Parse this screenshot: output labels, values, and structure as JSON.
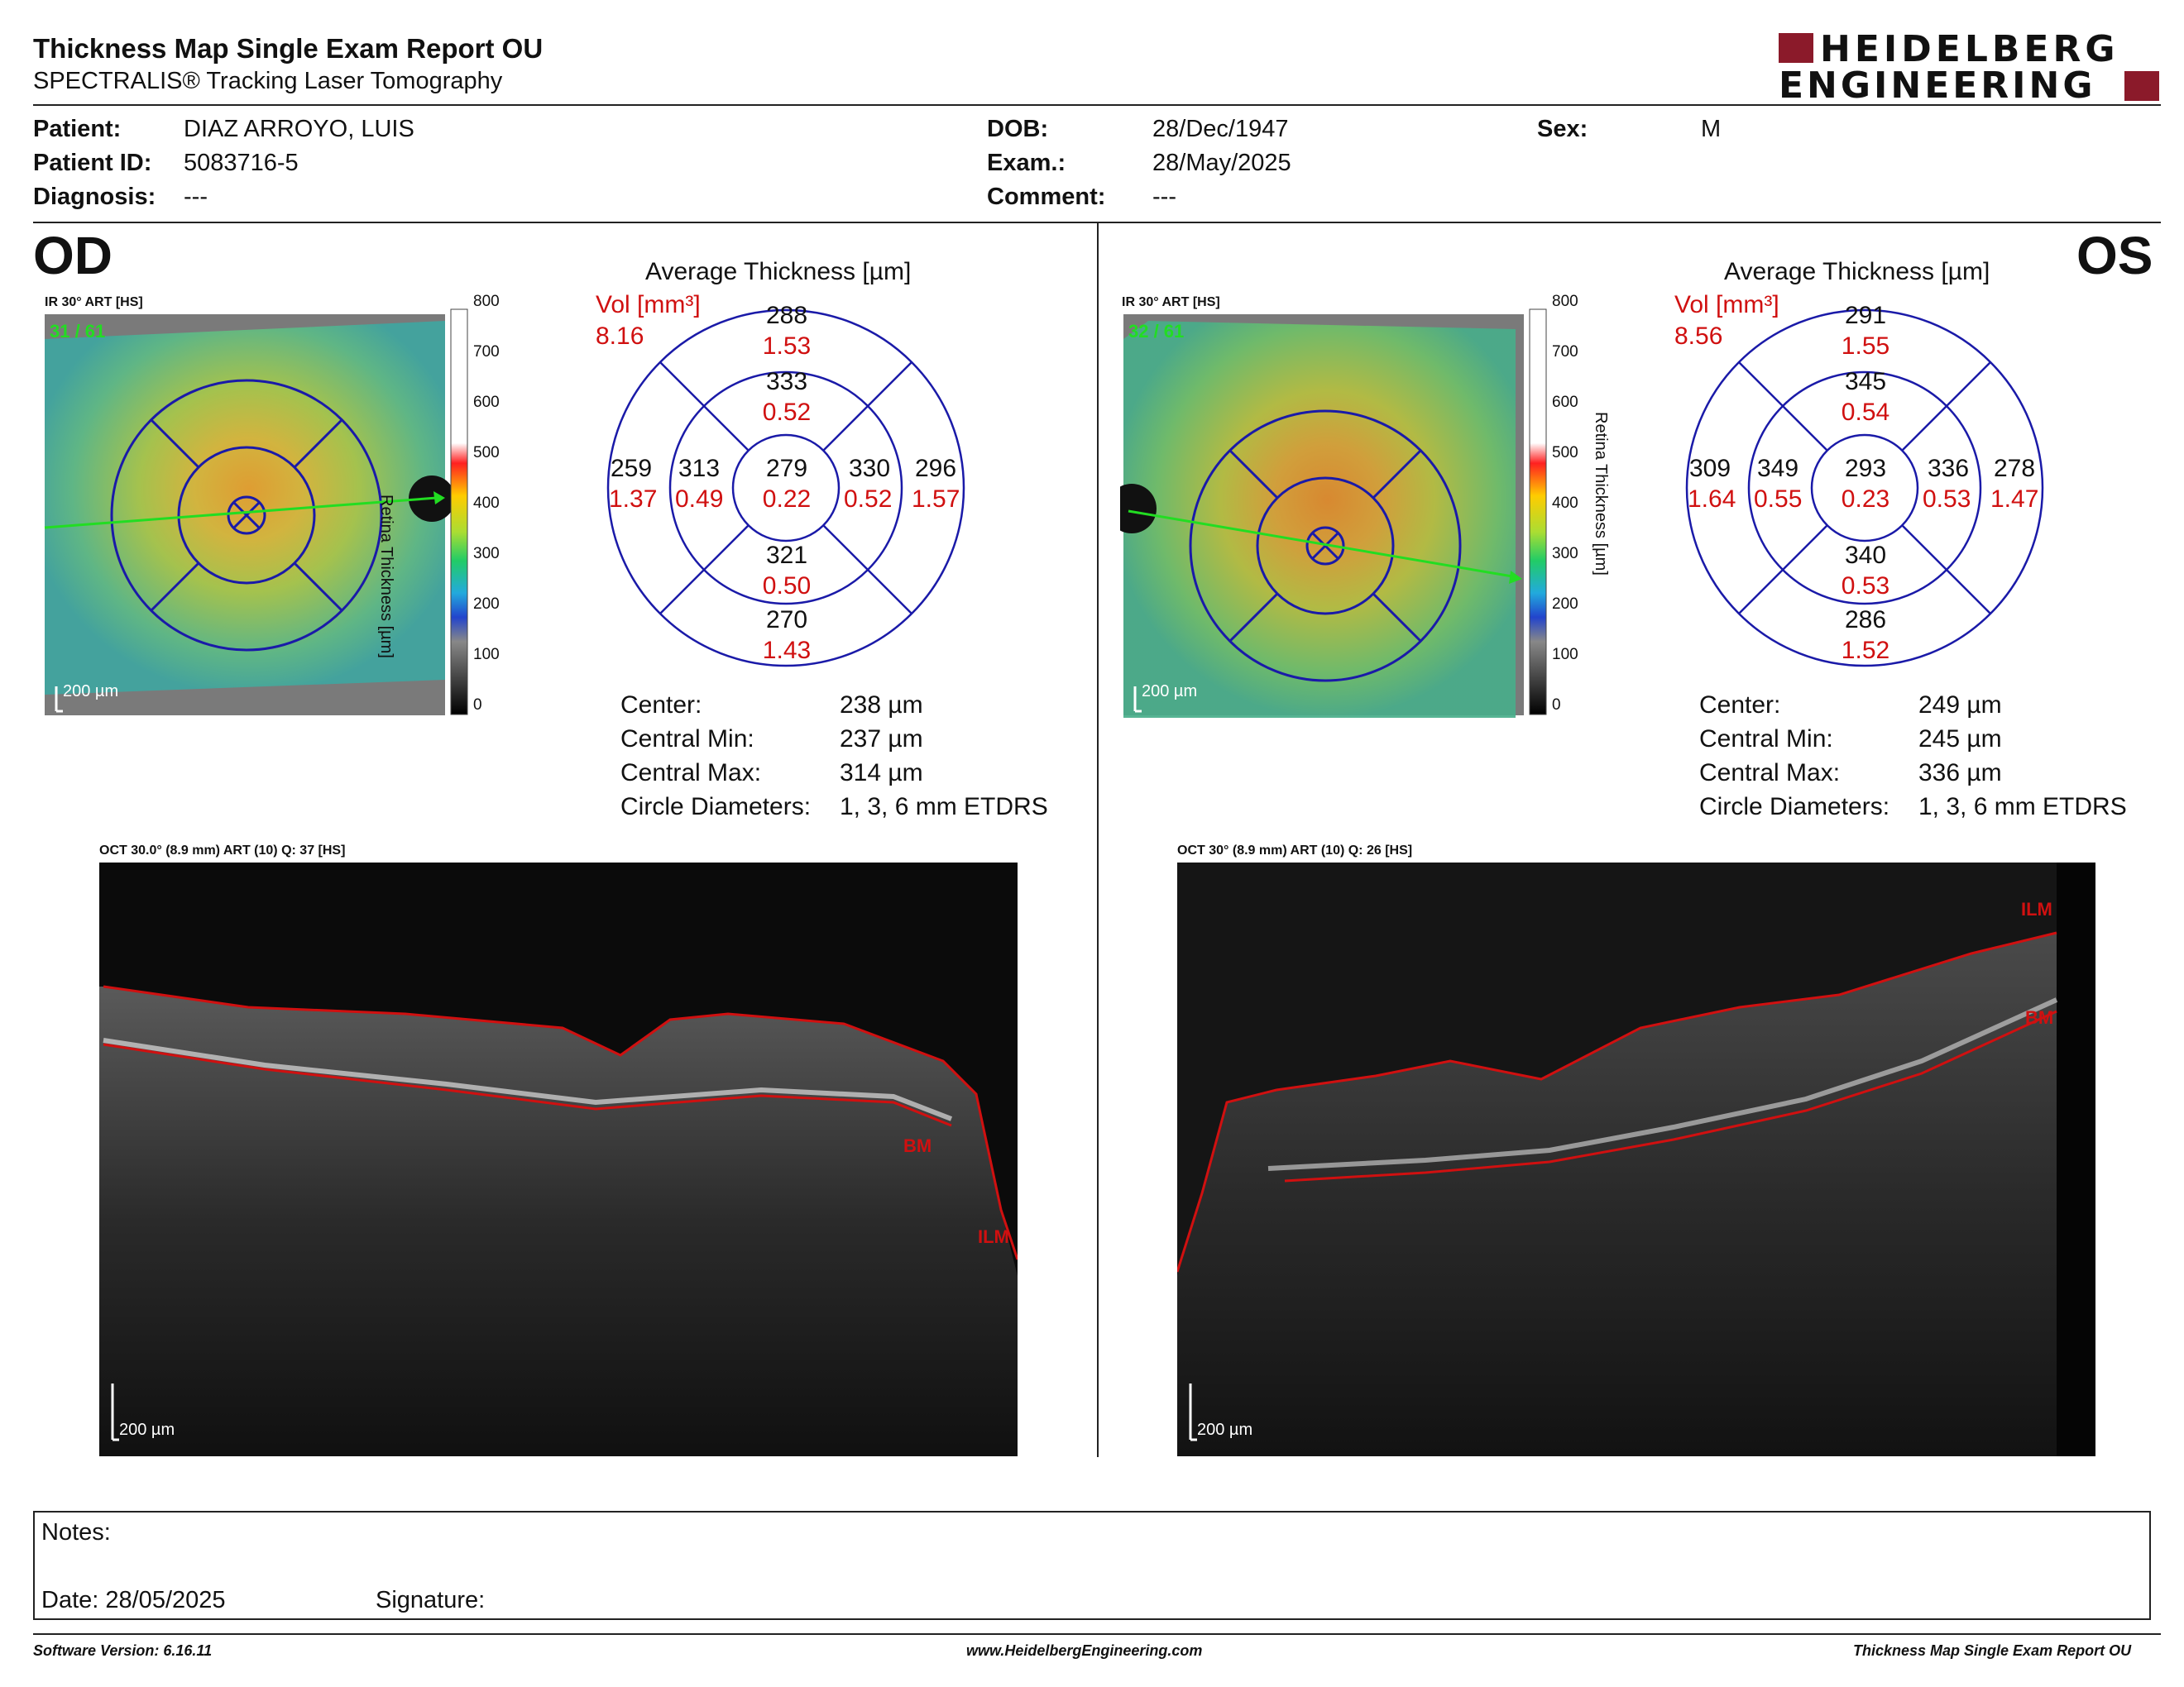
{
  "header": {
    "title": "Thickness Map Single Exam Report OU",
    "subtitle": "SPECTRALIS® Tracking Laser Tomography",
    "logo_line1": "HEIDELBERG",
    "logo_line2": "ENGINEERING"
  },
  "patient": {
    "patient_label": "Patient:",
    "patient_value": "DIAZ ARROYO, LUIS",
    "id_label": "Patient ID:",
    "id_value": "5083716-5",
    "diagnosis_label": "Diagnosis:",
    "diagnosis_value": "---",
    "dob_label": "DOB:",
    "dob_value": "28/Dec/1947",
    "exam_label": "Exam.:",
    "exam_value": "28/May/2025",
    "comment_label": "Comment:",
    "comment_value": "---",
    "sex_label": "Sex:",
    "sex_value": "M"
  },
  "colorbar": {
    "ticks": [
      "800",
      "700",
      "600",
      "500",
      "400",
      "300",
      "200",
      "100",
      "0"
    ],
    "label": "Retina Thickness [µm]"
  },
  "od": {
    "eye": "OD",
    "ir_label": "IR 30° ART [HS]",
    "frame": "31 / 61",
    "scale": "200 µm",
    "avg_title": "Average Thickness [µm]",
    "vol_label": "Vol [mm³]",
    "vol_total": "8.16",
    "sectors": {
      "outer_top": [
        "288",
        "1.53"
      ],
      "inner_top": [
        "333",
        "0.52"
      ],
      "outer_left": [
        "259",
        "1.37"
      ],
      "inner_left": [
        "313",
        "0.49"
      ],
      "center": [
        "279",
        "0.22"
      ],
      "inner_right": [
        "330",
        "0.52"
      ],
      "outer_right": [
        "296",
        "1.57"
      ],
      "inner_bottom": [
        "321",
        "0.50"
      ],
      "outer_bottom": [
        "270",
        "1.43"
      ]
    },
    "stats": {
      "center_label": "Center:",
      "center_value": "238 µm",
      "min_label": "Central Min:",
      "min_value": "237 µm",
      "max_label": "Central Max:",
      "max_value": "314 µm",
      "circ_label": "Circle Diameters:",
      "circ_value": "1, 3, 6 mm ETDRS"
    },
    "oct_label": "OCT 30.0° (8.9 mm) ART (10) Q: 37 [HS]",
    "oct_scale": "200 µm",
    "tag_bm": "BM",
    "tag_ilm": "ILM"
  },
  "os": {
    "eye": "OS",
    "ir_label": "IR 30° ART [HS]",
    "frame": "32 / 61",
    "scale": "200 µm",
    "avg_title": "Average Thickness [µm]",
    "vol_label": "Vol [mm³]",
    "vol_total": "8.56",
    "sectors": {
      "outer_top": [
        "291",
        "1.55"
      ],
      "inner_top": [
        "345",
        "0.54"
      ],
      "outer_left": [
        "309",
        "1.64"
      ],
      "inner_left": [
        "349",
        "0.55"
      ],
      "center": [
        "293",
        "0.23"
      ],
      "inner_right": [
        "336",
        "0.53"
      ],
      "outer_right": [
        "278",
        "1.47"
      ],
      "inner_bottom": [
        "340",
        "0.53"
      ],
      "outer_bottom": [
        "286",
        "1.52"
      ]
    },
    "stats": {
      "center_label": "Center:",
      "center_value": "249 µm",
      "min_label": "Central Min:",
      "min_value": "245 µm",
      "max_label": "Central Max:",
      "max_value": "336 µm",
      "circ_label": "Circle Diameters:",
      "circ_value": "1, 3, 6 mm ETDRS"
    },
    "oct_label": "OCT 30° (8.9 mm) ART (10) Q: 26 [HS]",
    "oct_scale": "200 µm",
    "tag_bm": "BM",
    "tag_ilm": "ILM"
  },
  "notes": {
    "notes_label": "Notes:",
    "date_label": "Date: 28/05/2025",
    "signature_label": "Signature:"
  },
  "footer": {
    "software": "Software Version: 6.16.11",
    "website": "www.HeidelbergEngineering.com",
    "report": "Thickness Map Single Exam Report OU"
  },
  "colors": {
    "grid_blue": "#1a1aa8",
    "red_text": "#d01010",
    "logo_red": "#8b1a2a",
    "scan_green": "#22dd22"
  }
}
